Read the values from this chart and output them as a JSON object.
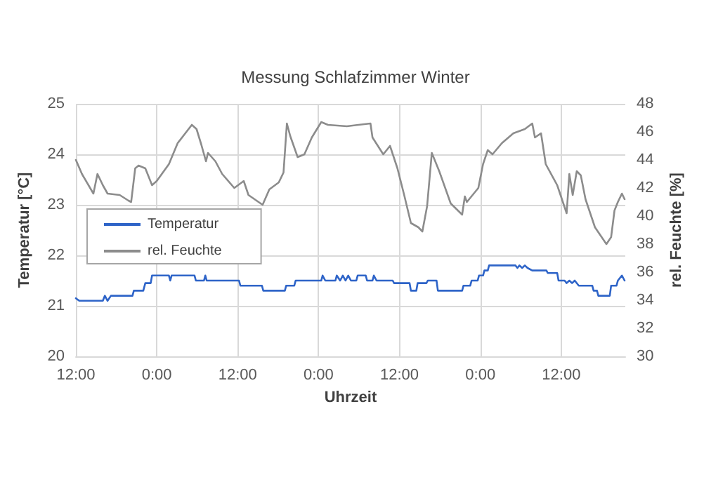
{
  "chart_data": {
    "type": "line",
    "title": "Messung Schlafzimmer Winter",
    "xlabel": "Uhrzeit",
    "ylabel": "Temperatur [°C]",
    "y2label": "rel. Feuchte [%]",
    "xlim": [
      "--01-01T12:00",
      "--01-04T21:30"
    ],
    "xticks": [
      {
        "value": "--01-01T12:00",
        "label": "12:00"
      },
      {
        "value": "--01-02T00:00",
        "label": "0:00"
      },
      {
        "value": "--01-02T12:00",
        "label": "12:00"
      },
      {
        "value": "--01-03T00:00",
        "label": "0:00"
      },
      {
        "value": "--01-03T12:00",
        "label": "12:00"
      },
      {
        "value": "--01-04T00:00",
        "label": "0:00"
      },
      {
        "value": "--01-04T12:00",
        "label": "12:00"
      }
    ],
    "ylim": [
      20,
      25
    ],
    "yticks": [
      20,
      21,
      22,
      23,
      24,
      25
    ],
    "y2lim": [
      30,
      48
    ],
    "y2ticks": [
      30,
      32,
      34,
      36,
      38,
      40,
      42,
      44,
      46,
      48
    ],
    "grid": true,
    "legend": "left",
    "marker": "none",
    "series": [
      {
        "name": "Temperatur",
        "color": "#2e64c8",
        "x": [
          "--01-01T12:00",
          "--01-01T12:30",
          "--01-01T16:00",
          "--01-01T16:18",
          "--01-01T16:42",
          "--01-01T17:12",
          "--01-01T20:24",
          "--01-01T20:36",
          "--01-01T22:00",
          "--01-01T22:18",
          "--01-01T23:06",
          "--01-01T23:18",
          "--01-02T01:48",
          "--01-02T02:00",
          "--01-02T02:12",
          "--01-02T05:36",
          "--01-02T05:48",
          "--01-02T07:00",
          "--01-02T07:12",
          "--01-02T07:24",
          "--01-02T12:12",
          "--01-02T12:24",
          "--01-02T15:36",
          "--01-02T15:48",
          "--01-02T19:00",
          "--01-02T19:12",
          "--01-02T20:24",
          "--01-02T20:36",
          "--01-03T00:24",
          "--01-03T00:36",
          "--01-03T01:00",
          "--01-03T02:30",
          "--01-03T02:42",
          "--01-03T03:12",
          "--01-03T03:36",
          "--01-03T04:00",
          "--01-03T04:24",
          "--01-03T04:48",
          "--01-03T05:36",
          "--01-03T05:48",
          "--01-03T07:00",
          "--01-03T07:12",
          "--01-03T08:00",
          "--01-03T08:12",
          "--01-03T08:36",
          "--01-03T11:00",
          "--01-03T11:12",
          "--01-03T13:30",
          "--01-03T13:42",
          "--01-03T14:30",
          "--01-03T14:42",
          "--01-03T16:00",
          "--01-03T16:12",
          "--01-03T17:30",
          "--01-03T17:42",
          "--01-03T21:18",
          "--01-03T21:30",
          "--01-03T22:30",
          "--01-03T22:42",
          "--01-03T23:36",
          "--01-03T23:48",
          "--01-04T00:24",
          "--01-04T00:36",
          "--01-04T01:06",
          "--01-04T01:18",
          "--01-04T05:12",
          "--01-04T05:30",
          "--01-04T05:48",
          "--01-04T06:12",
          "--01-04T06:36",
          "--01-04T07:00",
          "--01-04T07:42",
          "--01-04T09:48",
          "--01-04T10:00",
          "--01-04T11:24",
          "--01-04T11:36",
          "--01-04T12:30",
          "--01-04T12:48",
          "--01-04T13:12",
          "--01-04T13:36",
          "--01-04T14:00",
          "--01-04T14:36",
          "--01-04T16:36",
          "--01-04T16:48",
          "--01-04T17:18",
          "--01-04T17:30",
          "--01-04T19:12",
          "--01-04T19:24",
          "--01-04T20:12",
          "--01-04T20:24",
          "--01-04T21:00",
          "--01-04T21:24"
        ],
        "values": [
          21.15,
          21.1,
          21.1,
          21.2,
          21.1,
          21.2,
          21.2,
          21.3,
          21.3,
          21.45,
          21.45,
          21.6,
          21.6,
          21.5,
          21.6,
          21.6,
          21.5,
          21.5,
          21.6,
          21.5,
          21.5,
          21.4,
          21.4,
          21.3,
          21.3,
          21.4,
          21.4,
          21.5,
          21.5,
          21.6,
          21.5,
          21.5,
          21.6,
          21.5,
          21.6,
          21.5,
          21.6,
          21.5,
          21.5,
          21.6,
          21.6,
          21.5,
          21.5,
          21.6,
          21.5,
          21.5,
          21.45,
          21.45,
          21.3,
          21.3,
          21.45,
          21.45,
          21.5,
          21.5,
          21.3,
          21.3,
          21.4,
          21.4,
          21.5,
          21.5,
          21.6,
          21.6,
          21.7,
          21.7,
          21.8,
          21.8,
          21.75,
          21.8,
          21.75,
          21.8,
          21.75,
          21.7,
          21.7,
          21.65,
          21.65,
          21.5,
          21.5,
          21.45,
          21.5,
          21.45,
          21.5,
          21.4,
          21.4,
          21.3,
          21.3,
          21.2,
          21.2,
          21.4,
          21.4,
          21.5,
          21.6,
          21.5
        ]
      },
      {
        "name": "rel. Feuchte",
        "color": "#8c8c8c",
        "axis": "y2",
        "x": [
          "--01-01T12:00",
          "--01-01T12:54",
          "--01-01T14:36",
          "--01-01T15:12",
          "--01-01T16:00",
          "--01-01T16:42",
          "--01-01T18:30",
          "--01-01T19:48",
          "--01-01T20:12",
          "--01-01T20:48",
          "--01-01T21:18",
          "--01-01T22:18",
          "--01-01T23:18",
          "--01-02T00:00",
          "--01-02T01:48",
          "--01-02T03:06",
          "--01-02T05:12",
          "--01-02T05:54",
          "--01-02T06:36",
          "--01-02T07:18",
          "--01-02T07:36",
          "--01-02T08:42",
          "--01-02T09:42",
          "--01-02T11:30",
          "--01-02T12:54",
          "--01-02T13:36",
          "--01-02T15:42",
          "--01-02T16:42",
          "--01-02T18:06",
          "--01-02T18:48",
          "--01-02T19:18",
          "--01-02T19:48",
          "--01-02T20:54",
          "--01-02T21:54",
          "--01-02T23:00",
          "--01-03T00:24",
          "--01-03T01:24",
          "--01-03T04:12",
          "--01-03T07:42",
          "--01-03T08:00",
          "--01-03T09:36",
          "--01-03T10:36",
          "--01-03T11:42",
          "--01-03T12:42",
          "--01-03T13:42",
          "--01-03T14:48",
          "--01-03T15:24",
          "--01-03T16:06",
          "--01-03T16:48",
          "--01-03T17:54",
          "--01-03T19:36",
          "--01-03T21:18",
          "--01-03T21:42",
          "--01-03T22:00",
          "--01-03T23:42",
          "--01-04T00:24",
          "--01-04T01:06",
          "--01-04T01:48",
          "--01-04T03:12",
          "--01-04T04:54",
          "--01-04T06:36",
          "--01-04T07:42",
          "--01-04T08:06",
          "--01-04T09:00",
          "--01-04T09:42",
          "--01-04T11:24",
          "--01-04T12:48",
          "--01-04T13:12",
          "--01-04T13:42",
          "--01-04T14:18",
          "--01-04T14:54",
          "--01-04T15:36",
          "--01-04T17:00",
          "--01-04T18:42",
          "--01-04T19:24",
          "--01-04T19:54",
          "--01-04T20:24",
          "--01-04T21:00",
          "--01-04T21:24"
        ],
        "values": [
          44.0,
          43.0,
          41.6,
          43.0,
          42.2,
          41.6,
          41.5,
          41.1,
          41.0,
          43.4,
          43.6,
          43.4,
          42.2,
          42.5,
          43.7,
          45.2,
          46.5,
          46.2,
          45.1,
          43.9,
          44.5,
          43.9,
          43.0,
          42.0,
          42.5,
          41.5,
          40.8,
          41.9,
          42.4,
          43.1,
          46.6,
          45.7,
          44.2,
          44.4,
          45.6,
          46.7,
          46.5,
          46.4,
          46.6,
          45.6,
          44.4,
          45.0,
          43.4,
          41.5,
          39.5,
          39.2,
          38.9,
          40.7,
          44.5,
          43.2,
          40.9,
          40.1,
          41.4,
          41.0,
          42.0,
          43.7,
          44.7,
          44.4,
          45.2,
          45.9,
          46.2,
          46.6,
          45.6,
          45.9,
          43.7,
          42.2,
          40.2,
          43.0,
          41.5,
          43.2,
          42.9,
          41.2,
          39.2,
          38.0,
          38.5,
          40.4,
          41.0,
          41.6,
          41.2
        ]
      }
    ]
  }
}
